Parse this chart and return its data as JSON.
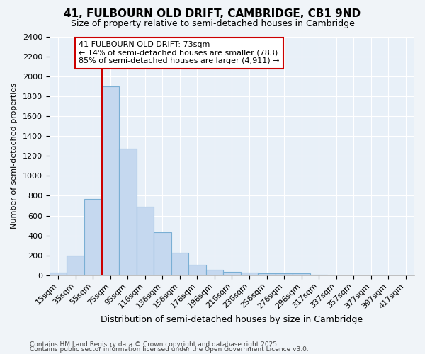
{
  "title1": "41, FULBOURN OLD DRIFT, CAMBRIDGE, CB1 9ND",
  "title2": "Size of property relative to semi-detached houses in Cambridge",
  "xlabel": "Distribution of semi-detached houses by size in Cambridge",
  "ylabel": "Number of semi-detached properties",
  "footnote1": "Contains HM Land Registry data © Crown copyright and database right 2025.",
  "footnote2": "Contains public sector information licensed under the Open Government Licence v3.0.",
  "bar_labels": [
    "15sqm",
    "35sqm",
    "55sqm",
    "75sqm",
    "95sqm",
    "116sqm",
    "136sqm",
    "156sqm",
    "176sqm",
    "196sqm",
    "216sqm",
    "236sqm",
    "256sqm",
    "276sqm",
    "296sqm",
    "317sqm",
    "337sqm",
    "357sqm",
    "377sqm",
    "397sqm",
    "417sqm"
  ],
  "bar_values": [
    25,
    200,
    770,
    1900,
    1270,
    690,
    435,
    230,
    105,
    60,
    35,
    30,
    22,
    18,
    18,
    5,
    0,
    0,
    0,
    0,
    0
  ],
  "bar_color": "#c5d8ef",
  "bar_edge_color": "#7aafd4",
  "plot_bg_color": "#e8f0f8",
  "fig_bg_color": "#f0f4f8",
  "grid_color": "#ffffff",
  "vline_x": 2.5,
  "vline_color": "#cc0000",
  "annotation_text": "41 FULBOURN OLD DRIFT: 73sqm\n← 14% of semi-detached houses are smaller (783)\n85% of semi-detached houses are larger (4,911) →",
  "annotation_box_color": "#ffffff",
  "annotation_box_edge": "#cc0000",
  "ylim": [
    0,
    2400
  ],
  "yticks": [
    0,
    200,
    400,
    600,
    800,
    1000,
    1200,
    1400,
    1600,
    1800,
    2000,
    2200,
    2400
  ],
  "title1_fontsize": 11,
  "title2_fontsize": 9,
  "xlabel_fontsize": 9,
  "ylabel_fontsize": 8,
  "tick_fontsize": 8,
  "annotation_fontsize": 8,
  "footnote_fontsize": 6.5
}
